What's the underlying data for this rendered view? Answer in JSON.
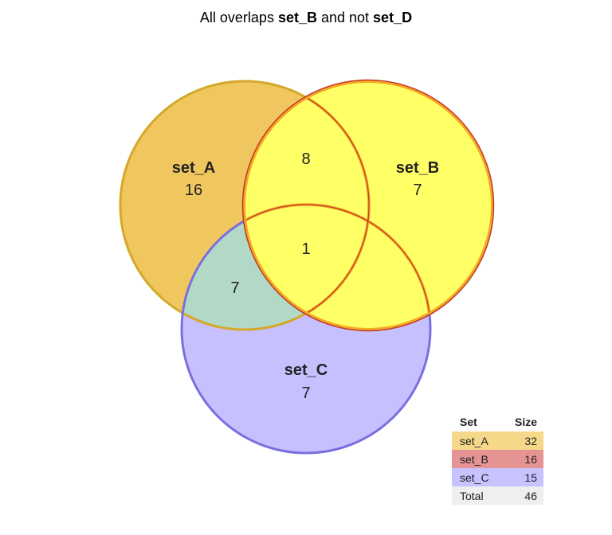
{
  "title": {
    "prefix": "All overlaps ",
    "set1": "set_B",
    "middle": " and not ",
    "set2": "set_D"
  },
  "sets": [
    {
      "name": "set_A",
      "only_count": "16",
      "fill": "#f0c75e",
      "stroke": "#d4a82a"
    },
    {
      "name": "set_B",
      "only_count": "7",
      "fill": "#ffff66",
      "stroke": "#c0392b"
    },
    {
      "name": "set_C",
      "only_count": "7",
      "fill": "#c7c0ff",
      "stroke": "#7b6fe0"
    }
  ],
  "overlaps": {
    "A_B": "8",
    "A_C": "7",
    "A_B_C": "1"
  },
  "colors": {
    "A_C_fill": "#b2d9c6",
    "B_highlight_stroke": "#f5a623"
  },
  "legend": {
    "header_set": "Set",
    "header_size": "Size",
    "rows": [
      {
        "set": "set_A",
        "size": "32",
        "color": "#f5d88a"
      },
      {
        "set": "set_B",
        "size": "16",
        "color": "#e69393"
      },
      {
        "set": "set_C",
        "size": "15",
        "color": "#c8c2ff"
      },
      {
        "set": "Total",
        "size": "46",
        "color": "#efefef"
      }
    ]
  }
}
